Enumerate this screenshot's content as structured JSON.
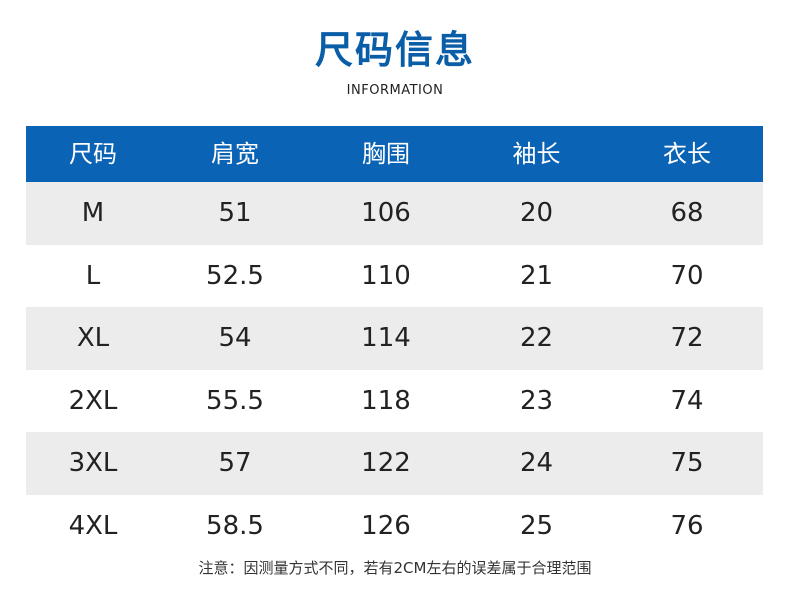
{
  "title": "尺码信息",
  "subtitle": "INFORMATION",
  "table": {
    "headers": [
      "尺码",
      "肩宽",
      "胸围",
      "袖长",
      "衣长"
    ],
    "rows": [
      [
        "M",
        "51",
        "106",
        "20",
        "68"
      ],
      [
        "L",
        "52.5",
        "110",
        "21",
        "70"
      ],
      [
        "XL",
        "54",
        "114",
        "22",
        "72"
      ],
      [
        "2XL",
        "55.5",
        "118",
        "23",
        "74"
      ],
      [
        "3XL",
        "57",
        "122",
        "24",
        "75"
      ],
      [
        "4XL",
        "58.5",
        "126",
        "25",
        "76"
      ]
    ]
  },
  "note": "注意：因测量方式不同，若有2CM左右的误差属于合理范围",
  "colors": {
    "title": "#0a5ea8",
    "header_bg": "#0b63b5",
    "shaded_row": "#ececec"
  }
}
